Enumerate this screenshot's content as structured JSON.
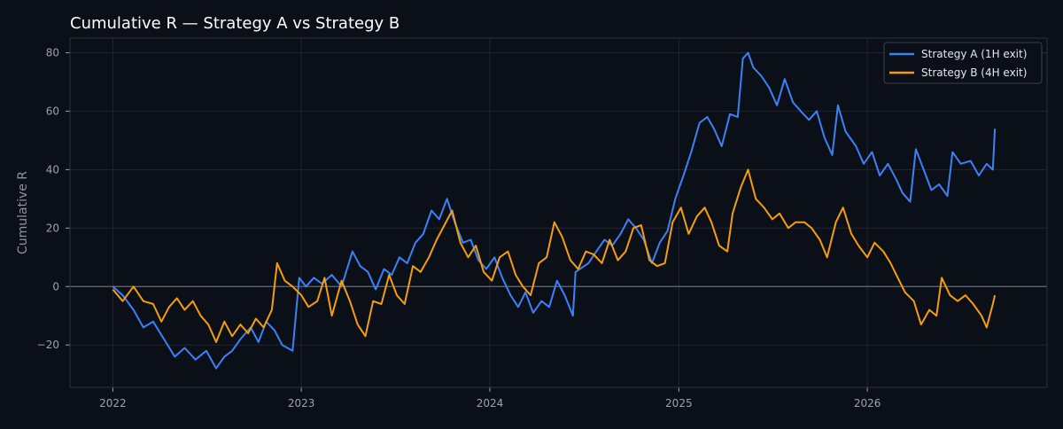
{
  "chart_data": {
    "type": "line",
    "title": "Cumulative R — Strategy A vs Strategy B",
    "xlabel": "",
    "ylabel": "Cumulative R",
    "x_ticks": [
      "2022",
      "2023",
      "2024",
      "2025",
      "2026"
    ],
    "y_ticks": [
      -20,
      0,
      20,
      40,
      60,
      80
    ],
    "xlim": [
      "2021-10-10",
      "2026-12-15"
    ],
    "ylim": [
      -34.5,
      85
    ],
    "grid": true,
    "zero_line": true,
    "legend_position": "top-right",
    "background": "#0b0f17",
    "series": [
      {
        "name": "Strategy A (1H exit)",
        "color": "#3b82f6",
        "points": [
          [
            "2022-01-01",
            0
          ],
          [
            "2022-01-20",
            -3
          ],
          [
            "2022-02-10",
            -8
          ],
          [
            "2022-03-01",
            -14
          ],
          [
            "2022-03-20",
            -12
          ],
          [
            "2022-04-10",
            -18
          ],
          [
            "2022-05-01",
            -24
          ],
          [
            "2022-05-20",
            -21
          ],
          [
            "2022-06-10",
            -25
          ],
          [
            "2022-07-01",
            -22
          ],
          [
            "2022-07-20",
            -28
          ],
          [
            "2022-08-05",
            -24
          ],
          [
            "2022-08-20",
            -22
          ],
          [
            "2022-09-05",
            -18
          ],
          [
            "2022-09-25",
            -14
          ],
          [
            "2022-10-10",
            -19
          ],
          [
            "2022-10-25",
            -12
          ],
          [
            "2022-11-10",
            -15
          ],
          [
            "2022-11-25",
            -20
          ],
          [
            "2022-12-15",
            -22
          ],
          [
            "2022-12-28",
            3
          ],
          [
            "2023-01-10",
            0
          ],
          [
            "2023-01-25",
            3
          ],
          [
            "2023-02-10",
            1
          ],
          [
            "2023-03-01",
            4
          ],
          [
            "2023-03-20",
            0
          ],
          [
            "2023-04-10",
            12
          ],
          [
            "2023-04-25",
            7
          ],
          [
            "2023-05-10",
            5
          ],
          [
            "2023-05-25",
            -1
          ],
          [
            "2023-06-10",
            6
          ],
          [
            "2023-06-25",
            4
          ],
          [
            "2023-07-10",
            10
          ],
          [
            "2023-07-25",
            8
          ],
          [
            "2023-08-10",
            15
          ],
          [
            "2023-08-25",
            18
          ],
          [
            "2023-09-10",
            26
          ],
          [
            "2023-09-25",
            23
          ],
          [
            "2023-10-10",
            30
          ],
          [
            "2023-10-25",
            22
          ],
          [
            "2023-11-10",
            15
          ],
          [
            "2023-11-25",
            16
          ],
          [
            "2023-12-10",
            9
          ],
          [
            "2023-12-25",
            6
          ],
          [
            "2024-01-10",
            10
          ],
          [
            "2024-01-25",
            3
          ],
          [
            "2024-02-10",
            -3
          ],
          [
            "2024-02-25",
            -7
          ],
          [
            "2024-03-10",
            -2
          ],
          [
            "2024-03-25",
            -9
          ],
          [
            "2024-04-10",
            -5
          ],
          [
            "2024-04-25",
            -7
          ],
          [
            "2024-05-10",
            2
          ],
          [
            "2024-05-25",
            -3
          ],
          [
            "2024-06-10",
            -10
          ],
          [
            "2024-06-15",
            5
          ],
          [
            "2024-07-10",
            8
          ],
          [
            "2024-07-25",
            12
          ],
          [
            "2024-08-10",
            16
          ],
          [
            "2024-08-25",
            14
          ],
          [
            "2024-09-10",
            18
          ],
          [
            "2024-09-25",
            23
          ],
          [
            "2024-10-10",
            20
          ],
          [
            "2024-10-25",
            16
          ],
          [
            "2024-11-10",
            8
          ],
          [
            "2024-11-25",
            15
          ],
          [
            "2024-12-10",
            19
          ],
          [
            "2024-12-25",
            30
          ],
          [
            "2025-01-10",
            38
          ],
          [
            "2025-01-25",
            46
          ],
          [
            "2025-02-10",
            56
          ],
          [
            "2025-02-25",
            58
          ],
          [
            "2025-03-10",
            54
          ],
          [
            "2025-03-25",
            48
          ],
          [
            "2025-04-10",
            59
          ],
          [
            "2025-04-25",
            58
          ],
          [
            "2025-05-05",
            78
          ],
          [
            "2025-05-15",
            80
          ],
          [
            "2025-05-25",
            75
          ],
          [
            "2025-06-10",
            72
          ],
          [
            "2025-06-25",
            68
          ],
          [
            "2025-07-10",
            62
          ],
          [
            "2025-07-25",
            71
          ],
          [
            "2025-08-10",
            63
          ],
          [
            "2025-08-25",
            60
          ],
          [
            "2025-09-10",
            57
          ],
          [
            "2025-09-25",
            60
          ],
          [
            "2025-10-10",
            51
          ],
          [
            "2025-10-25",
            45
          ],
          [
            "2025-11-05",
            62
          ],
          [
            "2025-11-20",
            53
          ],
          [
            "2025-12-10",
            48
          ],
          [
            "2025-12-25",
            42
          ],
          [
            "2026-01-10",
            46
          ],
          [
            "2026-01-25",
            38
          ],
          [
            "2026-02-10",
            42
          ],
          [
            "2026-02-25",
            37
          ],
          [
            "2026-03-10",
            32
          ],
          [
            "2026-03-25",
            29
          ],
          [
            "2026-04-05",
            47
          ],
          [
            "2026-04-20",
            40
          ],
          [
            "2026-05-05",
            33
          ],
          [
            "2026-05-20",
            35
          ],
          [
            "2026-06-05",
            31
          ],
          [
            "2026-06-15",
            46
          ],
          [
            "2026-07-01",
            42
          ],
          [
            "2026-07-20",
            43
          ],
          [
            "2026-08-05",
            38
          ],
          [
            "2026-08-20",
            42
          ],
          [
            "2026-09-01",
            40
          ],
          [
            "2026-09-05",
            54
          ]
        ]
      },
      {
        "name": "Strategy B (4H exit)",
        "color": "#f59e0b",
        "points": [
          [
            "2022-01-01",
            -1
          ],
          [
            "2022-01-20",
            -5
          ],
          [
            "2022-02-10",
            0
          ],
          [
            "2022-03-01",
            -5
          ],
          [
            "2022-03-20",
            -6
          ],
          [
            "2022-04-05",
            -12
          ],
          [
            "2022-04-20",
            -7
          ],
          [
            "2022-05-05",
            -4
          ],
          [
            "2022-05-20",
            -8
          ],
          [
            "2022-06-05",
            -5
          ],
          [
            "2022-06-20",
            -10
          ],
          [
            "2022-07-05",
            -13
          ],
          [
            "2022-07-20",
            -19
          ],
          [
            "2022-08-05",
            -12
          ],
          [
            "2022-08-20",
            -17
          ],
          [
            "2022-09-05",
            -13
          ],
          [
            "2022-09-20",
            -16
          ],
          [
            "2022-10-05",
            -11
          ],
          [
            "2022-10-20",
            -14
          ],
          [
            "2022-11-05",
            -8
          ],
          [
            "2022-11-15",
            8
          ],
          [
            "2022-11-30",
            2
          ],
          [
            "2022-12-15",
            0
          ],
          [
            "2023-01-01",
            -3
          ],
          [
            "2023-01-15",
            -7
          ],
          [
            "2023-02-01",
            -5
          ],
          [
            "2023-02-15",
            3
          ],
          [
            "2023-03-01",
            -10
          ],
          [
            "2023-03-20",
            2
          ],
          [
            "2023-04-05",
            -5
          ],
          [
            "2023-04-20",
            -13
          ],
          [
            "2023-05-05",
            -17
          ],
          [
            "2023-05-20",
            -5
          ],
          [
            "2023-06-05",
            -6
          ],
          [
            "2023-06-20",
            4
          ],
          [
            "2023-07-05",
            -3
          ],
          [
            "2023-07-20",
            -6
          ],
          [
            "2023-08-05",
            7
          ],
          [
            "2023-08-20",
            5
          ],
          [
            "2023-09-05",
            10
          ],
          [
            "2023-09-20",
            16
          ],
          [
            "2023-10-05",
            21
          ],
          [
            "2023-10-20",
            26
          ],
          [
            "2023-11-05",
            15
          ],
          [
            "2023-11-20",
            10
          ],
          [
            "2023-12-05",
            14
          ],
          [
            "2023-12-20",
            5
          ],
          [
            "2024-01-05",
            2
          ],
          [
            "2024-01-20",
            10
          ],
          [
            "2024-02-05",
            12
          ],
          [
            "2024-02-20",
            4
          ],
          [
            "2024-03-05",
            0
          ],
          [
            "2024-03-20",
            -3
          ],
          [
            "2024-04-05",
            8
          ],
          [
            "2024-04-20",
            10
          ],
          [
            "2024-05-05",
            22
          ],
          [
            "2024-05-20",
            17
          ],
          [
            "2024-06-05",
            9
          ],
          [
            "2024-06-20",
            6
          ],
          [
            "2024-07-05",
            12
          ],
          [
            "2024-07-20",
            11
          ],
          [
            "2024-08-05",
            8
          ],
          [
            "2024-08-20",
            16
          ],
          [
            "2024-09-05",
            9
          ],
          [
            "2024-09-20",
            12
          ],
          [
            "2024-10-05",
            20
          ],
          [
            "2024-10-20",
            21
          ],
          [
            "2024-11-05",
            9
          ],
          [
            "2024-11-20",
            7
          ],
          [
            "2024-12-05",
            8
          ],
          [
            "2024-12-20",
            22
          ],
          [
            "2025-01-05",
            27
          ],
          [
            "2025-01-20",
            18
          ],
          [
            "2025-02-05",
            24
          ],
          [
            "2025-02-20",
            27
          ],
          [
            "2025-03-05",
            22
          ],
          [
            "2025-03-20",
            14
          ],
          [
            "2025-04-05",
            12
          ],
          [
            "2025-04-15",
            25
          ],
          [
            "2025-05-01",
            34
          ],
          [
            "2025-05-15",
            40
          ],
          [
            "2025-05-30",
            30
          ],
          [
            "2025-06-15",
            27
          ],
          [
            "2025-07-01",
            23
          ],
          [
            "2025-07-15",
            25
          ],
          [
            "2025-08-01",
            20
          ],
          [
            "2025-08-15",
            22
          ],
          [
            "2025-09-01",
            22
          ],
          [
            "2025-09-15",
            20
          ],
          [
            "2025-10-01",
            16
          ],
          [
            "2025-10-15",
            10
          ],
          [
            "2025-11-01",
            22
          ],
          [
            "2025-11-15",
            27
          ],
          [
            "2025-12-01",
            18
          ],
          [
            "2025-12-15",
            14
          ],
          [
            "2026-01-01",
            10
          ],
          [
            "2026-01-15",
            15
          ],
          [
            "2026-02-01",
            12
          ],
          [
            "2026-02-15",
            8
          ],
          [
            "2026-03-01",
            3
          ],
          [
            "2026-03-15",
            -2
          ],
          [
            "2026-04-01",
            -5
          ],
          [
            "2026-04-15",
            -13
          ],
          [
            "2026-05-01",
            -8
          ],
          [
            "2026-05-15",
            -10
          ],
          [
            "2026-05-25",
            3
          ],
          [
            "2026-06-10",
            -3
          ],
          [
            "2026-06-25",
            -5
          ],
          [
            "2026-07-10",
            -3
          ],
          [
            "2026-07-25",
            -6
          ],
          [
            "2026-08-10",
            -10
          ],
          [
            "2026-08-20",
            -14
          ],
          [
            "2026-09-01",
            -6
          ],
          [
            "2026-09-05",
            -3
          ]
        ]
      }
    ]
  }
}
